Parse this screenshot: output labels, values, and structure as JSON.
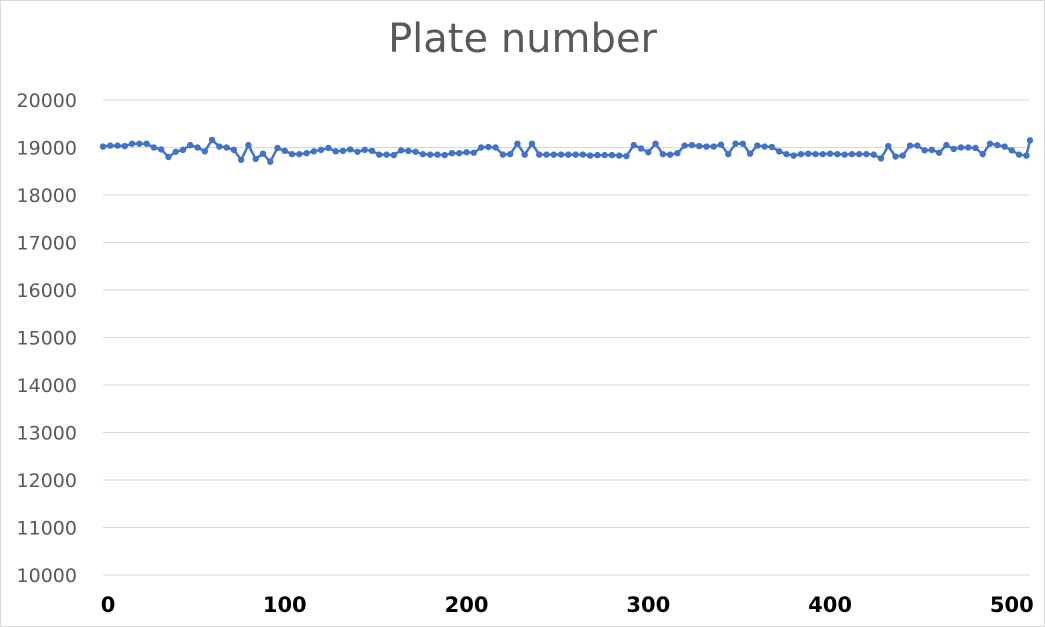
{
  "chart_data": {
    "type": "line",
    "title": "Plate number",
    "xlabel": "",
    "ylabel": "",
    "xlim": [
      0,
      510
    ],
    "ylim": [
      10000,
      20000
    ],
    "x_ticks": [
      "0",
      "100",
      "200",
      "300",
      "400",
      "500"
    ],
    "y_ticks": [
      "10000",
      "11000",
      "12000",
      "13000",
      "14000",
      "15000",
      "16000",
      "17000",
      "18000",
      "19000",
      "20000"
    ],
    "grid": true,
    "legend": "none",
    "colors": {
      "line": "#4472C4",
      "grid": "#d9d9d9"
    },
    "x_step": 4,
    "values": [
      19020,
      19040,
      19040,
      19030,
      19080,
      19080,
      19080,
      19000,
      18960,
      18800,
      18910,
      18950,
      19050,
      19000,
      18920,
      19160,
      19020,
      19000,
      18950,
      18740,
      19050,
      18760,
      18870,
      18700,
      18990,
      18930,
      18860,
      18860,
      18880,
      18920,
      18950,
      18990,
      18920,
      18930,
      18960,
      18910,
      18950,
      18930,
      18850,
      18850,
      18840,
      18940,
      18930,
      18910,
      18860,
      18850,
      18850,
      18840,
      18880,
      18880,
      18900,
      18890,
      19000,
      19010,
      19000,
      18850,
      18860,
      19080,
      18850,
      19080,
      18850,
      18850,
      18850,
      18850,
      18850,
      18850,
      18850,
      18830,
      18840,
      18840,
      18840,
      18830,
      18820,
      19050,
      18980,
      18900,
      19080,
      18860,
      18850,
      18880,
      19040,
      19050,
      19030,
      19020,
      19020,
      19060,
      18860,
      19080,
      19080,
      18870,
      19040,
      19020,
      19010,
      18920,
      18860,
      18830,
      18860,
      18870,
      18860,
      18860,
      18870,
      18860,
      18850,
      18860,
      18860,
      18860,
      18850,
      18770,
      19030,
      18810,
      18830,
      19040,
      19040,
      18940,
      18950,
      18890,
      19050,
      18970,
      19000,
      19000,
      18990,
      18860,
      19080,
      19050,
      19020,
      18940,
      18850,
      18830,
      19150
    ]
  }
}
